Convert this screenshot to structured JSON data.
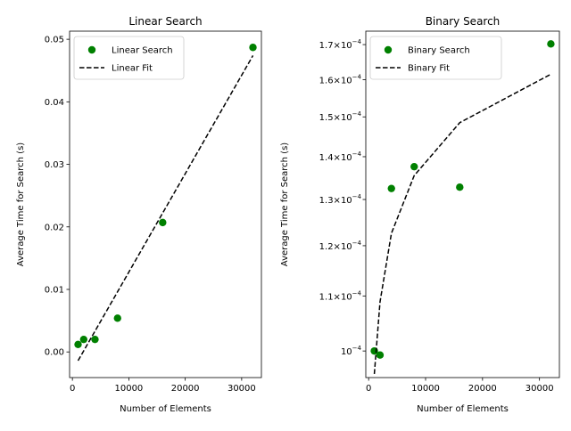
{
  "chart_data": [
    {
      "type": "scatter",
      "title": "Linear Search",
      "xlabel": "Number of Elements",
      "ylabel": "Average Time for Search (s)",
      "xlim": [
        -500,
        33500
      ],
      "ylim": [
        -0.0041,
        0.0513
      ],
      "yscale": "linear",
      "xticks": [
        0,
        10000,
        20000,
        30000
      ],
      "xtick_labels": [
        "0",
        "10000",
        "20000",
        "30000"
      ],
      "yticks": [
        0,
        0.01,
        0.02,
        0.03,
        0.04,
        0.05
      ],
      "ytick_labels": [
        "0.00",
        "0.01",
        "0.02",
        "0.03",
        "0.04",
        "0.05"
      ],
      "legend_position": "top-left",
      "series": [
        {
          "name": "Linear Search",
          "kind": "scatter",
          "color": "#008000",
          "x": [
            1000,
            2000,
            4000,
            8000,
            16000,
            32000
          ],
          "y": [
            0.0012,
            0.002,
            0.002,
            0.0054,
            0.0207,
            0.0487
          ]
        },
        {
          "name": "Linear Fit",
          "kind": "line",
          "style": "dashed",
          "color": "#000000",
          "x": [
            1000,
            32000
          ],
          "y": [
            -0.0014,
            0.0474
          ]
        }
      ]
    },
    {
      "type": "scatter",
      "title": "Binary Search",
      "xlabel": "Number of Elements",
      "ylabel": "Average Time for Search (s)",
      "xlim": [
        -500,
        33500
      ],
      "ylim": [
        9.55e-05,
        0.000174
      ],
      "yscale": "log",
      "xticks": [
        0,
        10000,
        20000,
        30000
      ],
      "xtick_labels": [
        "0",
        "10000",
        "20000",
        "30000"
      ],
      "yticks": [
        0.0001,
        0.00011,
        0.00012,
        0.00013,
        0.00014,
        0.00015,
        0.00016,
        0.00017
      ],
      "ytick_mantissas": [
        "10",
        "1.1×10",
        "1.2×10",
        "1.3×10",
        "1.4×10",
        "1.5×10",
        "1.6×10",
        "1.7×10"
      ],
      "ytick_exponent": "−4",
      "legend_position": "top-left",
      "series": [
        {
          "name": "Binary Search",
          "kind": "scatter",
          "color": "#008000",
          "x": [
            1000,
            2000,
            4000,
            8000,
            16000,
            32000
          ],
          "y": [
            0.0001,
            9.93e-05,
            0.0001325,
            0.0001376,
            0.0001328,
            0.0001702
          ]
        },
        {
          "name": "Binary Fit",
          "kind": "line",
          "style": "dashed",
          "color": "#000000",
          "x": [
            1000,
            2000,
            4000,
            8000,
            16000,
            32000
          ],
          "y": [
            9.61e-05,
            0.0001089,
            0.0001226,
            0.0001355,
            0.0001485,
            0.0001615
          ]
        }
      ]
    }
  ]
}
